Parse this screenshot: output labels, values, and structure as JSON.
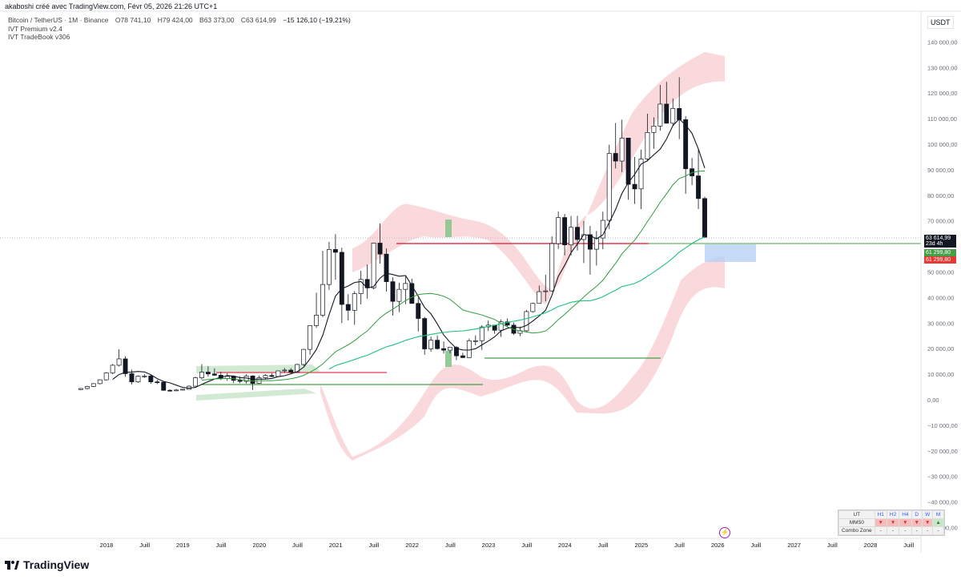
{
  "header": {
    "text": "akaboshi créé avec TradingView.com, Févr 05, 2026 21:26 UTC+1"
  },
  "symbol": {
    "name": "Bitcoin / TetherUS · 1M · Binance",
    "open": "O78 741,10",
    "high": "H79 424,00",
    "low": "B63 373,00",
    "close": "C63 614,99",
    "change": "−15 126,10 (−19,21%)"
  },
  "indicators": [
    "IVT Premium v2.4",
    "IVT TradeBook v306"
  ],
  "currency": "USDT",
  "price_tags": {
    "last": "63 614,99",
    "countdown": "23d 4h",
    "green": "61 299,80",
    "red": "61 299,80"
  },
  "table": {
    "headers": [
      "UT",
      "H1",
      "H2",
      "H4",
      "D",
      "W",
      "M"
    ],
    "rows": [
      {
        "label": "MM50",
        "cells": [
          "▼",
          "▼",
          "▼",
          "▼",
          "▼",
          "▲"
        ]
      },
      {
        "label": "Combo Zone",
        "cells": [
          "-",
          "-",
          "-",
          "-",
          "-",
          "-"
        ]
      }
    ]
  },
  "brand": "TradingView",
  "chart_data": {
    "type": "candlestick",
    "timeframe": "1M",
    "ylim": [
      -50000,
      140000
    ],
    "y_ticks": [
      140000,
      130000,
      120000,
      110000,
      100000,
      90000,
      80000,
      70000,
      50000,
      40000,
      30000,
      20000,
      10000,
      0,
      -10000,
      -20000,
      -30000,
      -40000,
      -50000
    ],
    "y_tick_labels": [
      "140 000,00",
      "130 000,00",
      "120 000,00",
      "110 000,00",
      "100 000,00",
      "90 000,00",
      "80 000,00",
      "70 000,00",
      "50 000,00",
      "40 000,00",
      "30 000,00",
      "20 000,00",
      "10 000,00",
      "0,00",
      "−10 000,00",
      "−20 000,00",
      "−30 000,00",
      "−40 000,00",
      "−50 000,00"
    ],
    "x_labels": [
      "2018",
      "Juill",
      "2019",
      "Juill",
      "2020",
      "Juill",
      "2021",
      "Juill",
      "2022",
      "Juill",
      "2023",
      "Juill",
      "2024",
      "Juill",
      "2025",
      "Juill",
      "2026",
      "Juill",
      "2027",
      "Juill",
      "2028",
      "Juill"
    ],
    "x_label_month_index": [
      0,
      6,
      12,
      18,
      24,
      30,
      36,
      42,
      48,
      54,
      60,
      66,
      72,
      78,
      84,
      90,
      96,
      102,
      108,
      114,
      120,
      126
    ],
    "candles": [
      [
        4000,
        4500,
        3800,
        4400
      ],
      [
        4400,
        5500,
        4000,
        5200
      ],
      [
        5200,
        6500,
        5000,
        6300
      ],
      [
        6300,
        8000,
        6000,
        7800
      ],
      [
        7800,
        10800,
        7500,
        10500
      ],
      [
        10500,
        14000,
        10000,
        13500
      ],
      [
        13500,
        19700,
        13000,
        16000
      ],
      [
        16000,
        17000,
        9000,
        10200
      ],
      [
        10200,
        11800,
        6000,
        7000
      ],
      [
        7000,
        9500,
        6600,
        9200
      ],
      [
        9200,
        10000,
        8600,
        9300
      ],
      [
        9300,
        9800,
        6200,
        7000
      ],
      [
        7000,
        7800,
        6100,
        6900
      ],
      [
        6900,
        7000,
        3500,
        3700
      ],
      [
        3700,
        4100,
        3200,
        3500
      ],
      [
        3500,
        4200,
        3400,
        3800
      ],
      [
        3800,
        4200,
        3700,
        4100
      ],
      [
        4100,
        5600,
        4000,
        5300
      ],
      [
        5300,
        9000,
        5200,
        8600
      ],
      [
        8600,
        13900,
        8000,
        10800
      ],
      [
        10800,
        13100,
        9000,
        10100
      ],
      [
        10100,
        12300,
        9400,
        9600
      ],
      [
        9600,
        10900,
        7700,
        8300
      ],
      [
        8300,
        10400,
        7400,
        9200
      ],
      [
        9200,
        9500,
        6500,
        7600
      ],
      [
        7600,
        9200,
        6500,
        7200
      ],
      [
        7200,
        10000,
        6400,
        9300
      ],
      [
        9300,
        9600,
        3800,
        6400
      ],
      [
        6400,
        9400,
        6200,
        8600
      ],
      [
        8600,
        10000,
        8100,
        9500
      ],
      [
        9500,
        10400,
        8900,
        9100
      ],
      [
        9100,
        11400,
        9000,
        11300
      ],
      [
        11300,
        12400,
        10600,
        11600
      ],
      [
        11600,
        12400,
        10000,
        10800
      ],
      [
        10800,
        14100,
        10500,
        13800
      ],
      [
        13800,
        19900,
        13200,
        19700
      ],
      [
        19700,
        29000,
        17600,
        29000
      ],
      [
        29000,
        41900,
        28100,
        33100
      ],
      [
        33100,
        58300,
        32300,
        45100
      ],
      [
        45100,
        61800,
        43000,
        58800
      ],
      [
        58800,
        64800,
        47000,
        57700
      ],
      [
        57700,
        59500,
        30000,
        37300
      ],
      [
        37300,
        41300,
        31000,
        35000
      ],
      [
        35000,
        42500,
        29300,
        41500
      ],
      [
        41500,
        50500,
        37300,
        47100
      ],
      [
        47100,
        52900,
        39600,
        43800
      ],
      [
        43800,
        61500,
        43300,
        61300
      ],
      [
        61300,
        69000,
        53300,
        57000
      ],
      [
        57000,
        59200,
        42300,
        46200
      ],
      [
        46200,
        47900,
        32900,
        38500
      ],
      [
        38500,
        45800,
        34300,
        43200
      ],
      [
        43200,
        48200,
        37400,
        45500
      ],
      [
        45500,
        47400,
        37600,
        37700
      ],
      [
        37700,
        40000,
        26700,
        31800
      ],
      [
        31800,
        32400,
        17600,
        19900
      ],
      [
        19900,
        24700,
        18800,
        23300
      ],
      [
        23300,
        25200,
        19600,
        20000
      ],
      [
        20000,
        22800,
        18100,
        19400
      ],
      [
        19400,
        20500,
        18200,
        20500
      ],
      [
        20500,
        21100,
        15500,
        17200
      ],
      [
        17200,
        18400,
        16300,
        16500
      ],
      [
        16500,
        23900,
        16500,
        23100
      ],
      [
        23100,
        25200,
        21300,
        23100
      ],
      [
        23100,
        29200,
        19500,
        28500
      ],
      [
        28500,
        31000,
        26900,
        29200
      ],
      [
        29200,
        29100,
        25800,
        27200
      ],
      [
        27200,
        31400,
        24600,
        30500
      ],
      [
        30500,
        31800,
        28500,
        29200
      ],
      [
        29200,
        30200,
        25400,
        26000
      ],
      [
        26000,
        28600,
        24900,
        27000
      ],
      [
        27000,
        35200,
        26500,
        34500
      ],
      [
        34500,
        38000,
        34100,
        37700
      ],
      [
        37700,
        44700,
        37600,
        42300
      ],
      [
        42300,
        48900,
        38500,
        42600
      ],
      [
        42600,
        63900,
        42200,
        61100
      ],
      [
        61100,
        73700,
        59000,
        71300
      ],
      [
        71300,
        72700,
        56500,
        60600
      ],
      [
        60600,
        71900,
        56600,
        67500
      ],
      [
        67500,
        72000,
        58400,
        62700
      ],
      [
        62700,
        70000,
        53500,
        64600
      ],
      [
        64600,
        68000,
        49000,
        58900
      ],
      [
        58900,
        66000,
        52500,
        63300
      ],
      [
        63300,
        73600,
        58900,
        70200
      ],
      [
        70200,
        99800,
        66800,
        96400
      ],
      [
        96400,
        108300,
        90500,
        93400
      ],
      [
        93400,
        109600,
        89100,
        102400
      ],
      [
        102400,
        102500,
        78300,
        84300
      ],
      [
        84300,
        95000,
        76600,
        82500
      ],
      [
        82500,
        97900,
        74600,
        94200
      ],
      [
        94200,
        111900,
        93300,
        104600
      ],
      [
        104600,
        110500,
        98200,
        107100
      ],
      [
        107100,
        123200,
        105300,
        115700
      ],
      [
        115700,
        124400,
        108700,
        108200
      ],
      [
        108200,
        117900,
        107300,
        114000
      ],
      [
        114000,
        126200,
        102000,
        109600
      ],
      [
        109600,
        111000,
        80600,
        90400
      ],
      [
        90400,
        94600,
        84000,
        87600
      ],
      [
        87600,
        97900,
        74600,
        78741
      ],
      [
        78741,
        79424,
        63373,
        63614
      ]
    ]
  }
}
